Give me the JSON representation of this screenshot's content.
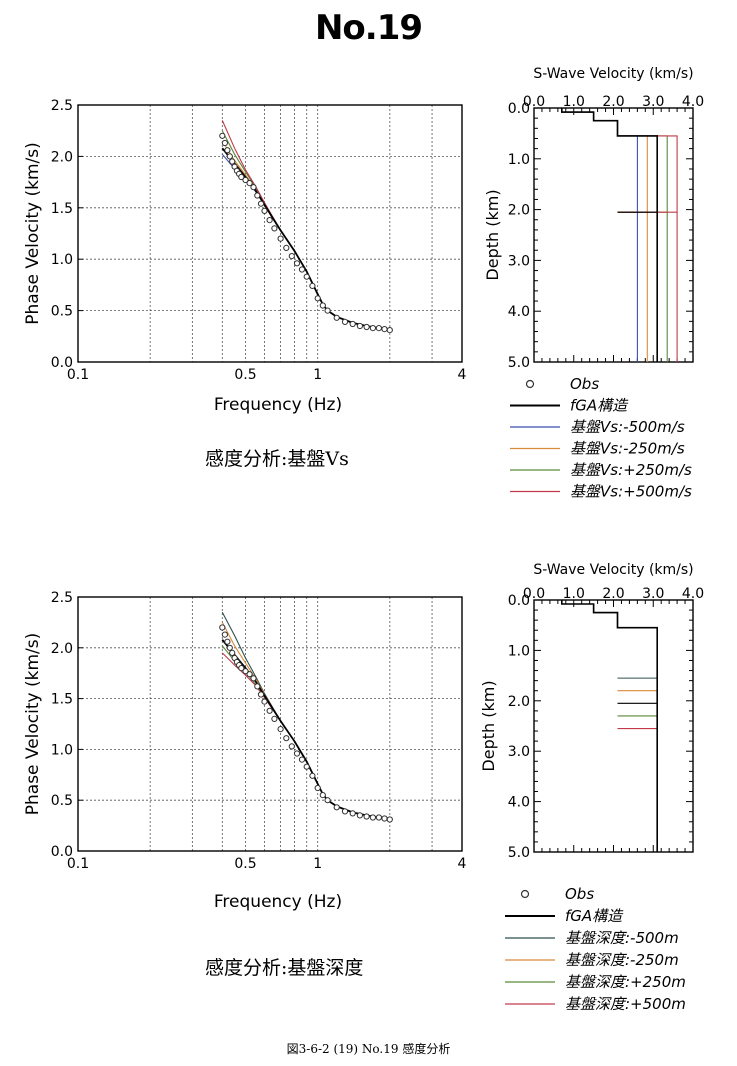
{
  "title": "No.19",
  "figure_caption": "図3-6-2 (19) No.19 感度分析",
  "panels": [
    {
      "caption": "感度分析:基盤Vs",
      "legend": [
        {
          "label": "Obs",
          "symbol": "circle",
          "color": "#333333"
        },
        {
          "label": "fGA構造",
          "symbol": "line",
          "color": "#000000"
        },
        {
          "label": "基盤Vs:-500m/s",
          "symbol": "line",
          "color": "#3a4fb0"
        },
        {
          "label": "基盤Vs:-250m/s",
          "symbol": "line",
          "color": "#d98a3a"
        },
        {
          "label": "基盤Vs:+250m/s",
          "symbol": "line",
          "color": "#5a8a3a"
        },
        {
          "label": "基盤Vs:+500m/s",
          "symbol": "line",
          "color": "#c23a4a"
        }
      ]
    },
    {
      "caption": "感度分析:基盤深度",
      "legend": [
        {
          "label": "Obs",
          "symbol": "circle",
          "color": "#333333"
        },
        {
          "label": "fGA構造",
          "symbol": "line",
          "color": "#000000"
        },
        {
          "label": "基盤深度:-500m",
          "symbol": "line",
          "color": "#2f4f4f"
        },
        {
          "label": "基盤深度:-250m",
          "symbol": "line",
          "color": "#d98a3a"
        },
        {
          "label": "基盤深度:+250m",
          "symbol": "line",
          "color": "#5a8a3a"
        },
        {
          "label": "基盤深度:+500m",
          "symbol": "line",
          "color": "#c23a4a"
        }
      ]
    }
  ],
  "chart_data": [
    {
      "id": "dispersion-1",
      "type": "line",
      "xlabel": "Frequency (Hz)",
      "ylabel": "Phase Velocity (km/s)",
      "xscale": "log",
      "xlim": [
        0.1,
        4
      ],
      "ylim": [
        0,
        2.5
      ],
      "xticks": [
        {
          "v": 0.1,
          "label": "0.1"
        },
        {
          "v": 0.5,
          "label": "0.5"
        },
        {
          "v": 1,
          "label": "1"
        },
        {
          "v": 4,
          "label": "4"
        }
      ],
      "yticks": [
        "0.0",
        "0.5",
        "1.0",
        "1.5",
        "2.0",
        "2.5"
      ],
      "grid": true,
      "obs": {
        "x": [
          0.4,
          0.41,
          0.42,
          0.43,
          0.44,
          0.45,
          0.46,
          0.47,
          0.48,
          0.5,
          0.52,
          0.54,
          0.56,
          0.58,
          0.6,
          0.63,
          0.66,
          0.7,
          0.74,
          0.78,
          0.82,
          0.86,
          0.9,
          0.95,
          1.0,
          1.05,
          1.1,
          1.2,
          1.3,
          1.4,
          1.5,
          1.6,
          1.7,
          1.8,
          1.9,
          2.0
        ],
        "y": [
          2.2,
          2.13,
          2.06,
          2.0,
          1.95,
          1.9,
          1.86,
          1.83,
          1.8,
          1.77,
          1.74,
          1.7,
          1.62,
          1.54,
          1.47,
          1.38,
          1.3,
          1.2,
          1.11,
          1.03,
          0.96,
          0.9,
          0.83,
          0.74,
          0.62,
          0.55,
          0.5,
          0.43,
          0.39,
          0.37,
          0.35,
          0.34,
          0.33,
          0.33,
          0.32,
          0.31
        ]
      },
      "series": [
        {
          "name": "fGA構造",
          "color": "#000000",
          "x": [
            0.4,
            0.45,
            0.5,
            0.55,
            0.6,
            0.65,
            0.7,
            0.8,
            0.9,
            1.0,
            1.05,
            1.1,
            1.2,
            1.4,
            1.6,
            1.8,
            2.0
          ],
          "y": [
            2.08,
            1.93,
            1.8,
            1.67,
            1.53,
            1.4,
            1.28,
            1.08,
            0.88,
            0.66,
            0.56,
            0.5,
            0.44,
            0.38,
            0.35,
            0.33,
            0.32
          ]
        },
        {
          "name": "基盤Vs:-500m/s",
          "color": "#3a4fb0",
          "x": [
            0.4,
            0.45,
            0.5,
            0.55,
            0.6,
            0.7
          ],
          "y": [
            2.02,
            1.88,
            1.78,
            1.66,
            1.53,
            1.28
          ]
        },
        {
          "name": "基盤Vs:-250m/s",
          "color": "#d98a3a",
          "x": [
            0.4,
            0.45,
            0.5,
            0.55,
            0.6,
            0.7
          ],
          "y": [
            2.15,
            1.96,
            1.82,
            1.68,
            1.54,
            1.28
          ]
        },
        {
          "name": "基盤Vs:+250m/s",
          "color": "#5a8a3a",
          "x": [
            0.4,
            0.45,
            0.5,
            0.55,
            0.6,
            0.7
          ],
          "y": [
            2.25,
            2.02,
            1.85,
            1.7,
            1.54,
            1.28
          ]
        },
        {
          "name": "基盤Vs:+500m/s",
          "color": "#c23a4a",
          "x": [
            0.4,
            0.45,
            0.5,
            0.55,
            0.6,
            0.7
          ],
          "y": [
            2.35,
            2.08,
            1.87,
            1.71,
            1.55,
            1.28
          ]
        }
      ]
    },
    {
      "id": "profile-1",
      "type": "line",
      "title": "S-Wave Velocity (km/s)",
      "ylabel": "Depth (km)",
      "xlim": [
        0,
        4
      ],
      "ylim": [
        0,
        5
      ],
      "xticks": [
        "0.0",
        "1.0",
        "2.0",
        "3.0",
        "4.0"
      ],
      "yticks": [
        "0.0",
        "1.0",
        "2.0",
        "3.0",
        "4.0",
        "5.0"
      ],
      "series": [
        {
          "name": "fGA構造",
          "color": "#000000",
          "vs": [
            0.7,
            1.5,
            2.1,
            3.1
          ],
          "depth": [
            0.0,
            0.08,
            0.25,
            0.55,
            2.05
          ]
        },
        {
          "name": "基盤Vs:-500m/s",
          "color": "#3a4fb0",
          "vs": [
            0.7,
            1.5,
            2.1,
            2.6
          ],
          "depth": [
            0.0,
            0.08,
            0.25,
            0.55,
            2.05
          ]
        },
        {
          "name": "基盤Vs:-250m/s",
          "color": "#d98a3a",
          "vs": [
            0.7,
            1.5,
            2.1,
            2.85
          ],
          "depth": [
            0.0,
            0.08,
            0.25,
            0.55,
            2.05
          ]
        },
        {
          "name": "基盤Vs:+250m/s",
          "color": "#5a8a3a",
          "vs": [
            0.7,
            1.5,
            2.1,
            3.35
          ],
          "depth": [
            0.0,
            0.08,
            0.25,
            0.55,
            2.05
          ]
        },
        {
          "name": "基盤Vs:+500m/s",
          "color": "#c23a4a",
          "vs": [
            0.7,
            1.5,
            2.1,
            3.6
          ],
          "depth": [
            0.0,
            0.08,
            0.25,
            0.55,
            2.05
          ]
        }
      ]
    },
    {
      "id": "dispersion-2",
      "type": "line",
      "xlabel": "Frequency (Hz)",
      "ylabel": "Phase Velocity (km/s)",
      "xscale": "log",
      "xlim": [
        0.1,
        4
      ],
      "ylim": [
        0,
        2.5
      ],
      "xticks": [
        {
          "v": 0.1,
          "label": "0.1"
        },
        {
          "v": 0.5,
          "label": "0.5"
        },
        {
          "v": 1,
          "label": "1"
        },
        {
          "v": 4,
          "label": "4"
        }
      ],
      "yticks": [
        "0.0",
        "0.5",
        "1.0",
        "1.5",
        "2.0",
        "2.5"
      ],
      "grid": true,
      "obs": {
        "x": [
          0.4,
          0.41,
          0.42,
          0.43,
          0.44,
          0.45,
          0.46,
          0.47,
          0.48,
          0.5,
          0.52,
          0.54,
          0.56,
          0.58,
          0.6,
          0.63,
          0.66,
          0.7,
          0.74,
          0.78,
          0.82,
          0.86,
          0.9,
          0.95,
          1.0,
          1.05,
          1.1,
          1.2,
          1.3,
          1.4,
          1.5,
          1.6,
          1.7,
          1.8,
          1.9,
          2.0
        ],
        "y": [
          2.2,
          2.13,
          2.06,
          2.0,
          1.95,
          1.9,
          1.86,
          1.83,
          1.8,
          1.77,
          1.74,
          1.7,
          1.62,
          1.54,
          1.47,
          1.38,
          1.3,
          1.2,
          1.11,
          1.03,
          0.96,
          0.9,
          0.83,
          0.74,
          0.62,
          0.55,
          0.5,
          0.43,
          0.39,
          0.37,
          0.35,
          0.34,
          0.33,
          0.33,
          0.32,
          0.31
        ]
      },
      "series": [
        {
          "name": "fGA構造",
          "color": "#000000",
          "x": [
            0.4,
            0.45,
            0.5,
            0.55,
            0.6,
            0.65,
            0.7,
            0.8,
            0.9,
            1.0,
            1.05,
            1.1,
            1.2,
            1.4,
            1.6,
            1.8,
            2.0
          ],
          "y": [
            2.08,
            1.93,
            1.8,
            1.67,
            1.53,
            1.4,
            1.28,
            1.08,
            0.88,
            0.66,
            0.56,
            0.5,
            0.44,
            0.38,
            0.35,
            0.33,
            0.32
          ]
        },
        {
          "name": "基盤深度:-500m",
          "color": "#2f4f4f",
          "x": [
            0.4,
            0.45,
            0.5,
            0.55,
            0.6,
            0.7
          ],
          "y": [
            2.35,
            2.12,
            1.9,
            1.72,
            1.55,
            1.28
          ]
        },
        {
          "name": "基盤深度:-250m",
          "color": "#d98a3a",
          "x": [
            0.4,
            0.45,
            0.5,
            0.55,
            0.6,
            0.7
          ],
          "y": [
            2.25,
            2.02,
            1.85,
            1.7,
            1.54,
            1.28
          ]
        },
        {
          "name": "基盤深度:+250m",
          "color": "#5a8a3a",
          "x": [
            0.4,
            0.45,
            0.5,
            0.55,
            0.6,
            0.7
          ],
          "y": [
            2.02,
            1.87,
            1.76,
            1.64,
            1.52,
            1.28
          ]
        },
        {
          "name": "基盤深度:+500m",
          "color": "#c23a4a",
          "x": [
            0.4,
            0.45,
            0.5,
            0.55,
            0.6,
            0.7
          ],
          "y": [
            1.95,
            1.83,
            1.73,
            1.63,
            1.51,
            1.28
          ]
        }
      ]
    },
    {
      "id": "profile-2",
      "type": "line",
      "title": "S-Wave Velocity (km/s)",
      "ylabel": "Depth (km)",
      "xlim": [
        0,
        4
      ],
      "ylim": [
        0,
        5
      ],
      "xticks": [
        "0.0",
        "1.0",
        "2.0",
        "3.0",
        "4.0"
      ],
      "yticks": [
        "0.0",
        "1.0",
        "2.0",
        "3.0",
        "4.0",
        "5.0"
      ],
      "series": [
        {
          "name": "fGA構造",
          "color": "#000000",
          "vs": [
            0.7,
            1.5,
            2.1,
            3.1
          ],
          "depth": [
            0.0,
            0.08,
            0.25,
            0.55,
            2.05
          ]
        },
        {
          "name": "基盤深度:-500m",
          "color": "#2f4f4f",
          "vs": [
            0.7,
            1.5,
            2.1,
            3.1
          ],
          "depth": [
            0.0,
            0.08,
            0.25,
            0.55,
            1.55
          ]
        },
        {
          "name": "基盤深度:-250m",
          "color": "#d98a3a",
          "vs": [
            0.7,
            1.5,
            2.1,
            3.1
          ],
          "depth": [
            0.0,
            0.08,
            0.25,
            0.55,
            1.8
          ]
        },
        {
          "name": "基盤深度:+250m",
          "color": "#5a8a3a",
          "vs": [
            0.7,
            1.5,
            2.1,
            3.1
          ],
          "depth": [
            0.0,
            0.08,
            0.25,
            0.55,
            2.3
          ]
        },
        {
          "name": "基盤深度:+500m",
          "color": "#c23a4a",
          "vs": [
            0.7,
            1.5,
            2.1,
            3.1
          ],
          "depth": [
            0.0,
            0.08,
            0.25,
            0.55,
            2.55
          ]
        }
      ]
    }
  ]
}
